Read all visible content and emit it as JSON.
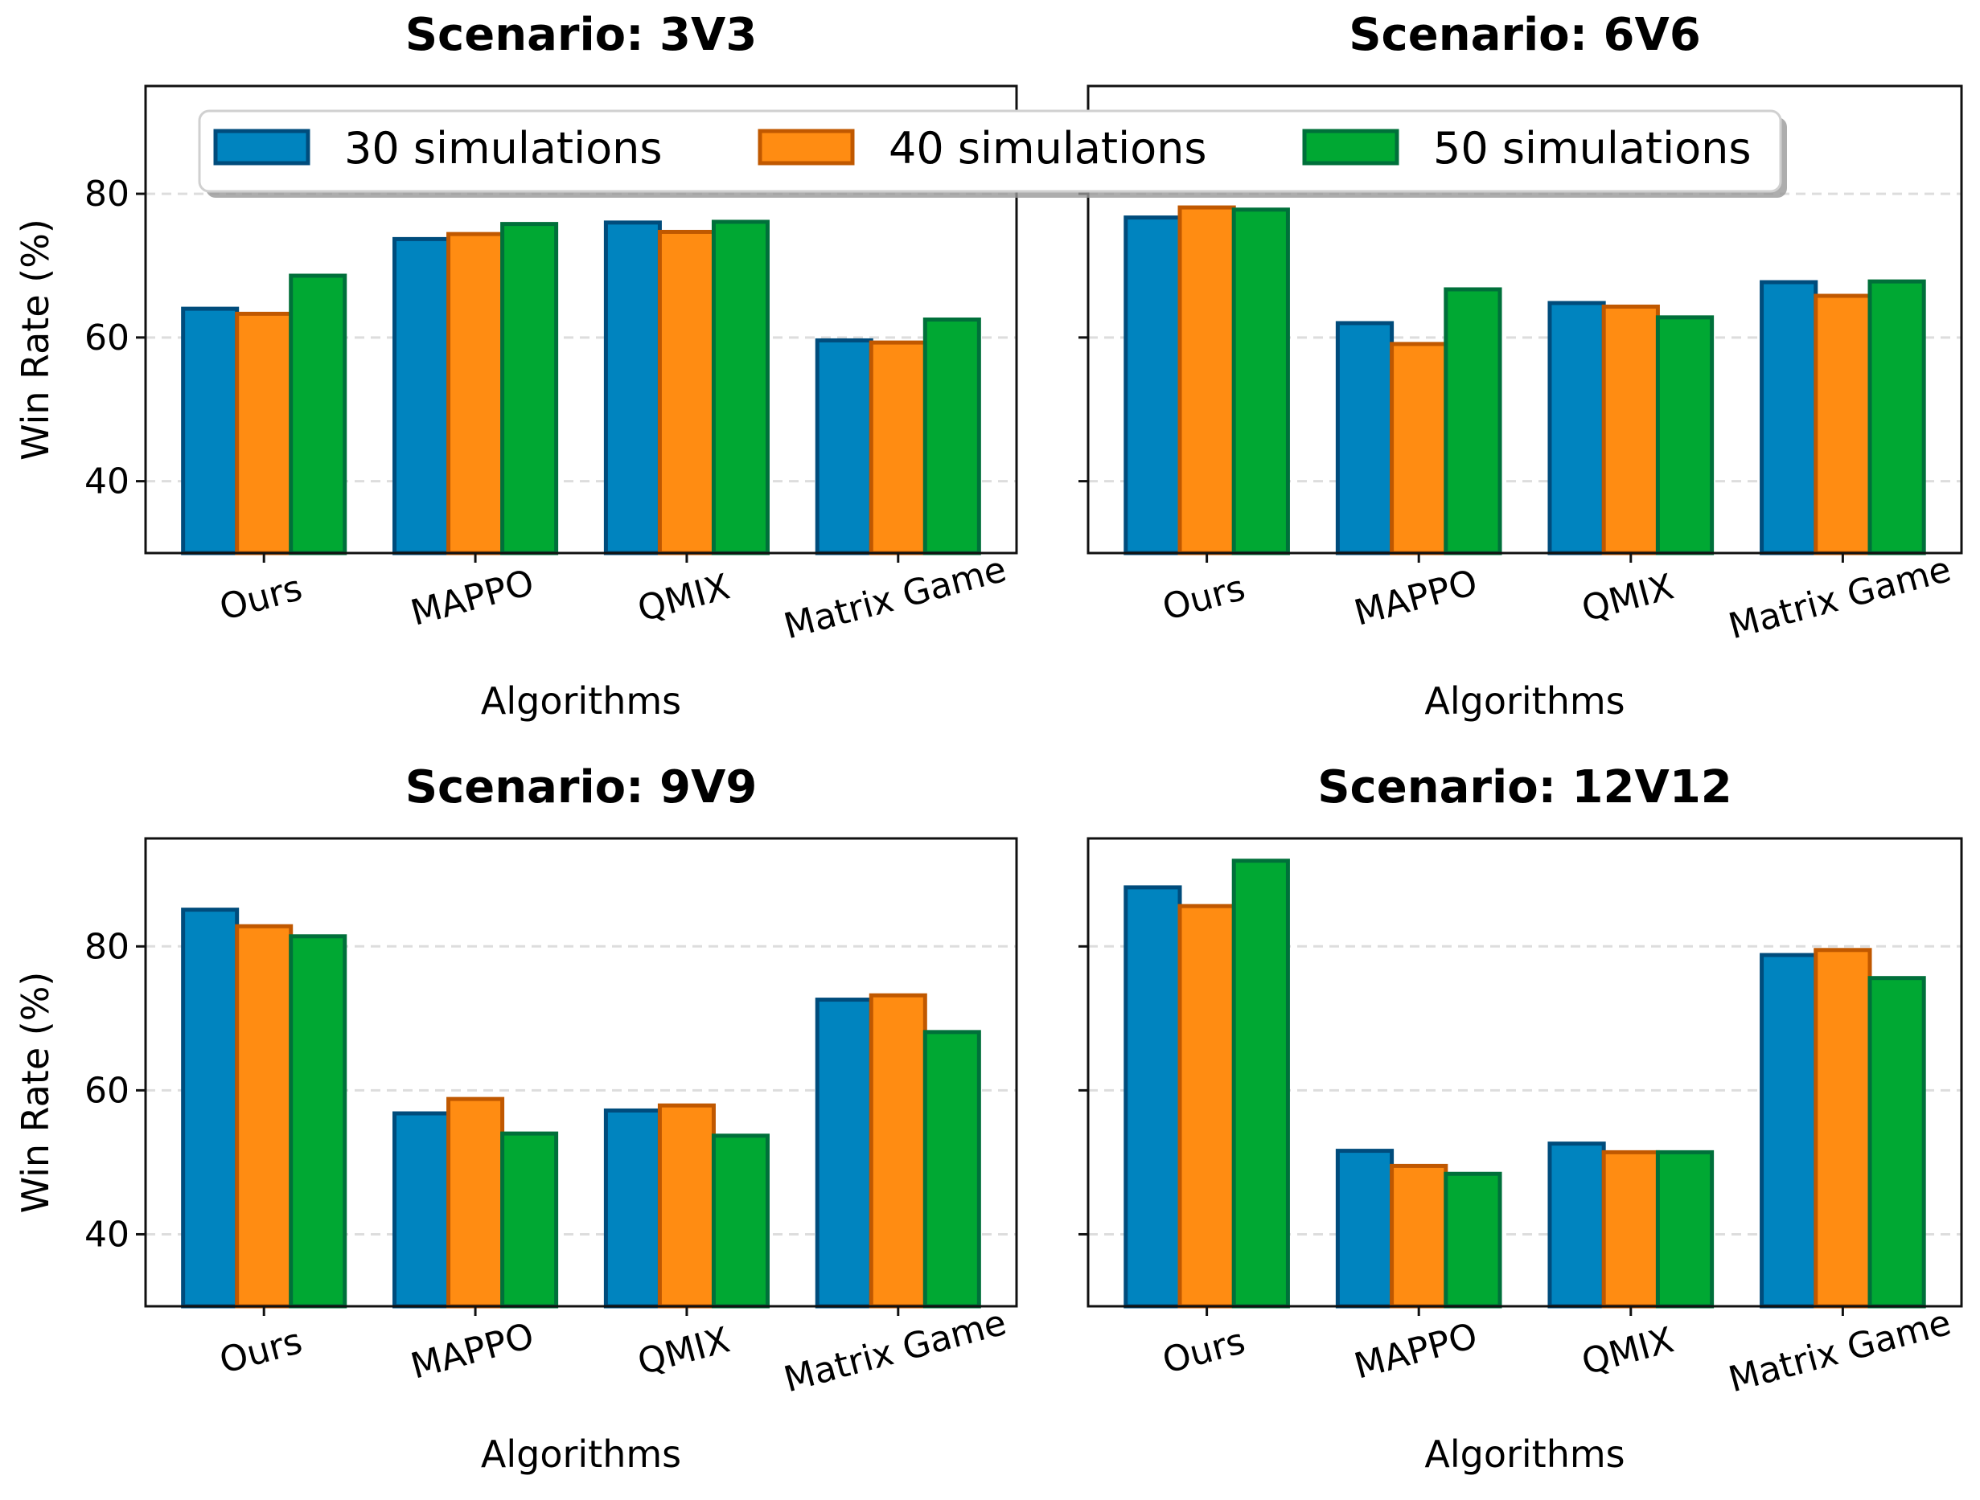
{
  "chart_data": [
    {
      "type": "bar",
      "title": "Scenario: 3V3",
      "xlabel": "Algorithms",
      "ylabel": "Win Rate (%)",
      "ylim": [
        30,
        95
      ],
      "yticks": [
        40,
        60,
        80
      ],
      "grid": true,
      "categories": [
        "Ours",
        "MAPPO",
        "QMIX",
        "Matrix Game"
      ],
      "series": [
        {
          "name": "30 simulations",
          "values": [
            64.0,
            73.7,
            76.0,
            59.6
          ]
        },
        {
          "name": "40 simulations",
          "values": [
            63.3,
            74.4,
            74.7,
            59.3
          ]
        },
        {
          "name": "50 simulations",
          "values": [
            68.6,
            75.8,
            76.1,
            62.5
          ]
        }
      ]
    },
    {
      "type": "bar",
      "title": "Scenario: 6V6",
      "xlabel": "Algorithms",
      "ylabel": "",
      "ylim": [
        30,
        95
      ],
      "yticks": [
        40,
        60,
        80
      ],
      "grid": true,
      "categories": [
        "Ours",
        "MAPPO",
        "QMIX",
        "Matrix Game"
      ],
      "series": [
        {
          "name": "30 simulations",
          "values": [
            76.7,
            62.0,
            64.8,
            67.7
          ]
        },
        {
          "name": "40 simulations",
          "values": [
            78.1,
            59.1,
            64.3,
            65.8
          ]
        },
        {
          "name": "50 simulations",
          "values": [
            77.8,
            66.7,
            62.8,
            67.8
          ]
        }
      ]
    },
    {
      "type": "bar",
      "title": "Scenario: 9V9",
      "xlabel": "Algorithms",
      "ylabel": "Win Rate (%)",
      "ylim": [
        30,
        95
      ],
      "yticks": [
        40,
        60,
        80
      ],
      "grid": true,
      "categories": [
        "Ours",
        "MAPPO",
        "QMIX",
        "Matrix Game"
      ],
      "series": [
        {
          "name": "30 simulations",
          "values": [
            85.1,
            56.8,
            57.2,
            72.6
          ]
        },
        {
          "name": "40 simulations",
          "values": [
            82.8,
            58.8,
            57.9,
            73.2
          ]
        },
        {
          "name": "50 simulations",
          "values": [
            81.4,
            54.0,
            53.7,
            68.1
          ]
        }
      ]
    },
    {
      "type": "bar",
      "title": "Scenario: 12V12",
      "xlabel": "Algorithms",
      "ylabel": "",
      "ylim": [
        30,
        95
      ],
      "yticks": [
        40,
        60,
        80
      ],
      "grid": true,
      "categories": [
        "Ours",
        "MAPPO",
        "QMIX",
        "Matrix Game"
      ],
      "series": [
        {
          "name": "30 simulations",
          "values": [
            88.2,
            51.6,
            52.6,
            78.8
          ]
        },
        {
          "name": "40 simulations",
          "values": [
            85.6,
            49.5,
            51.4,
            79.5
          ]
        },
        {
          "name": "50 simulations",
          "values": [
            91.9,
            48.4,
            51.4,
            75.6
          ]
        }
      ]
    }
  ],
  "legend": {
    "placement": "top-center",
    "entries": [
      "30 simulations",
      "40 simulations",
      "50 simulations"
    ]
  },
  "colors": {
    "fill": [
      "#0084bf",
      "#ff8c12",
      "#00a833"
    ],
    "edge": [
      "#004c7c",
      "#c05800",
      "#00703a"
    ]
  }
}
